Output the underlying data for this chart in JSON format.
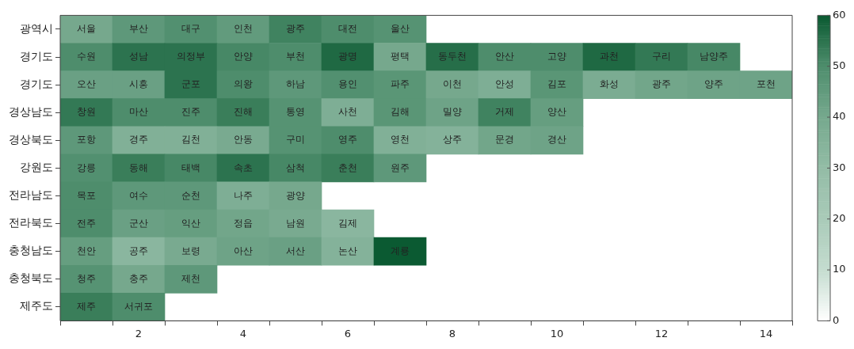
{
  "chart_data": {
    "type": "heatmap",
    "categories": [
      null,
      "2",
      null,
      "4",
      null,
      "6",
      null,
      "8",
      null,
      "10",
      null,
      "12",
      null,
      "14"
    ],
    "y_categories": [
      "광역시",
      "경기도",
      "경기도",
      "경상남도",
      "경상북도",
      "강원도",
      "전라남도",
      "전라북도",
      "충청남도",
      "충청북도",
      "제주도"
    ],
    "cells": [
      [
        40,
        46,
        49,
        45,
        52,
        50,
        48,
        null,
        null,
        null,
        null,
        null,
        null,
        null
      ],
      [
        50,
        55,
        55,
        51,
        50,
        57,
        40,
        56,
        50,
        50,
        57,
        54,
        51,
        null
      ],
      [
        43,
        43,
        55,
        50,
        46,
        49,
        47,
        40,
        37,
        47,
        38,
        41,
        42,
        42
      ],
      [
        54,
        50,
        50,
        53,
        48,
        37,
        47,
        42,
        52,
        44,
        null,
        null,
        null,
        null
      ],
      [
        46,
        36,
        36,
        39,
        48,
        50,
        36,
        35,
        41,
        42,
        null,
        null,
        null,
        null
      ],
      [
        49,
        53,
        51,
        55,
        51,
        53,
        46,
        null,
        null,
        null,
        null,
        null,
        null,
        null
      ],
      [
        50,
        46,
        46,
        37,
        40,
        null,
        null,
        null,
        null,
        null,
        null,
        null,
        null,
        null
      ],
      [
        50,
        43,
        44,
        41,
        39,
        33,
        null,
        null,
        null,
        null,
        null,
        null,
        null,
        null
      ],
      [
        44,
        33,
        39,
        42,
        43,
        35,
        60,
        null,
        null,
        null,
        null,
        null,
        null,
        null
      ],
      [
        48,
        40,
        46,
        null,
        null,
        null,
        null,
        null,
        null,
        null,
        null,
        null,
        null,
        null
      ],
      [
        53,
        50,
        null,
        null,
        null,
        null,
        null,
        null,
        null,
        null,
        null,
        null,
        null,
        null
      ]
    ],
    "cell_labels": [
      [
        "서울",
        "부산",
        "대구",
        "인천",
        "광주",
        "대전",
        "울산",
        null,
        null,
        null,
        null,
        null,
        null,
        null
      ],
      [
        "수원",
        "성남",
        "의정부",
        "안양",
        "부천",
        "광명",
        "평택",
        "동두천",
        "안산",
        "고양",
        "과천",
        "구리",
        "남양주",
        null
      ],
      [
        "오산",
        "시흥",
        "군포",
        "의왕",
        "하남",
        "용인",
        "파주",
        "이천",
        "안성",
        "김포",
        "화성",
        "광주",
        "양주",
        "포천"
      ],
      [
        "창원",
        "마산",
        "진주",
        "진해",
        "통영",
        "사천",
        "김해",
        "밀양",
        "거제",
        "양산",
        null,
        null,
        null,
        null
      ],
      [
        "포항",
        "경주",
        "김천",
        "안동",
        "구미",
        "영주",
        "영천",
        "상주",
        "문경",
        "경산",
        null,
        null,
        null,
        null
      ],
      [
        "강릉",
        "동해",
        "태백",
        "속초",
        "삼척",
        "춘천",
        "원주",
        null,
        null,
        null,
        null,
        null,
        null,
        null
      ],
      [
        "목포",
        "여수",
        "순천",
        "나주",
        "광양",
        null,
        null,
        null,
        null,
        null,
        null,
        null,
        null,
        null
      ],
      [
        "전주",
        "군산",
        "익산",
        "정읍",
        "남원",
        "김제",
        null,
        null,
        null,
        null,
        null,
        null,
        null,
        null
      ],
      [
        "천안",
        "공주",
        "보령",
        "아산",
        "서산",
        "논산",
        "계룡",
        null,
        null,
        null,
        null,
        null,
        null,
        null
      ],
      [
        "청주",
        "충주",
        "제천",
        null,
        null,
        null,
        null,
        null,
        null,
        null,
        null,
        null,
        null,
        null
      ],
      [
        "제주",
        "서귀포",
        null,
        null,
        null,
        null,
        null,
        null,
        null,
        null,
        null,
        null,
        null,
        null
      ]
    ],
    "clim": [
      0,
      60
    ],
    "cticks": [
      0,
      10,
      20,
      30,
      40,
      50,
      60
    ]
  }
}
